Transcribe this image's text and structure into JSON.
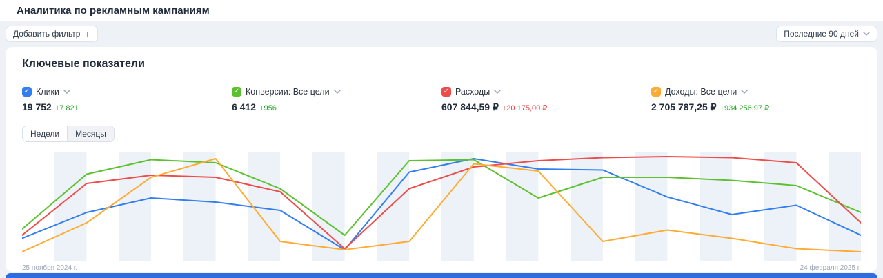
{
  "header": {
    "title": "Аналитика по рекламным кампаниям"
  },
  "toolbar": {
    "add_filter_label": "Добавить фильтр",
    "period_value": "Последние 90 дней"
  },
  "icons": {
    "check": "✓",
    "plus": "+"
  },
  "card": {
    "title": "Ключевые показатели",
    "metrics": [
      {
        "label": "Клики",
        "value": "19 752",
        "delta": "+7 821",
        "color": "#327ef0",
        "delta_color": "#26a626"
      },
      {
        "label": "Конверсии: Все цели",
        "value": "6 412",
        "delta": "+956",
        "color": "#5bc22e",
        "delta_color": "#26a626"
      },
      {
        "label": "Расходы",
        "value": "607 844,59 ₽",
        "delta": "+20 175,00 ₽",
        "color": "#ef4b49",
        "delta_color": "#e23d3d"
      },
      {
        "label": "Доходы: Все цели",
        "value": "2 705 787,25 ₽",
        "delta": "+934 256,97 ₽",
        "color": "#ffab33",
        "delta_color": "#26a626"
      }
    ],
    "granularity_tabs": [
      {
        "label": "Недели",
        "active": true
      },
      {
        "label": "Месяцы",
        "active": false
      }
    ]
  },
  "chart_data": {
    "type": "line",
    "x_axis": {
      "start_label": "25 ноября 2024 г.",
      "end_label": "24 февраля 2025 г.",
      "unit": "week",
      "points": 14
    },
    "ylim": [
      0,
      100
    ],
    "grid": "vertical-stripes",
    "stripe_color": "#edf2f9",
    "legend_position": "none",
    "series": [
      {
        "name": "Клики",
        "color": "#327ef0",
        "values": [
          19,
          44,
          58,
          54,
          46,
          8,
          83,
          96,
          86,
          85,
          59,
          42,
          51,
          22
        ]
      },
      {
        "name": "Конверсии: Все цели",
        "color": "#5bc22e",
        "values": [
          28,
          81,
          95,
          92,
          67,
          22,
          94,
          95,
          58,
          78,
          78,
          75,
          70,
          44
        ]
      },
      {
        "name": "Расходы",
        "color": "#ef4b49",
        "values": [
          22,
          72,
          80,
          78,
          64,
          9,
          67,
          88,
          94,
          97,
          98,
          97,
          92,
          34
        ]
      },
      {
        "name": "Доходы: Все цели",
        "color": "#ffab33",
        "values": [
          6,
          34,
          78,
          96,
          16,
          8,
          16,
          91,
          84,
          16,
          27,
          19,
          9,
          6
        ]
      }
    ]
  },
  "colors": {
    "page_bg": "#eef1f6",
    "banner_blue": "#2f6ce0"
  }
}
